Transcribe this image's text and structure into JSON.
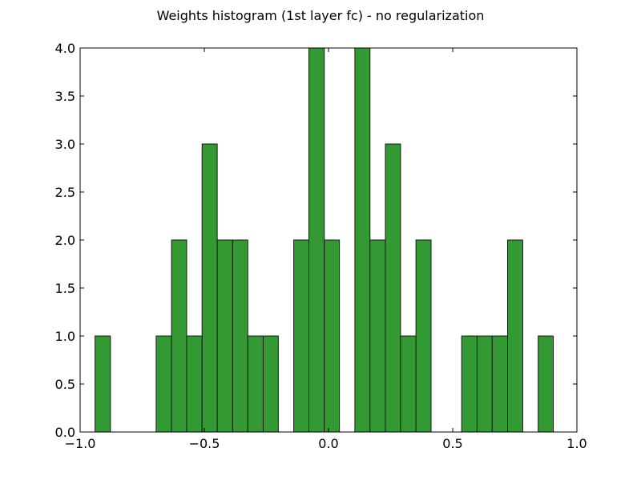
{
  "chart_data": {
    "type": "bar",
    "title": "Weights histogram (1st layer fc) - no regularization",
    "xlabel": "",
    "ylabel": "",
    "xlim": [
      -1.0,
      1.0
    ],
    "ylim": [
      0.0,
      4.0
    ],
    "x_ticks": [
      "−1.0",
      "−0.5",
      "0.0",
      "0.5",
      "1.0"
    ],
    "y_ticks": [
      "0.0",
      "0.5",
      "1.0",
      "1.5",
      "2.0",
      "2.5",
      "3.0",
      "3.5",
      "4.0"
    ],
    "grid": false,
    "bar_color": "#339933",
    "edge_color": "#1a1a1a",
    "bin_edges": [
      -0.94,
      -0.878,
      -0.817,
      -0.755,
      -0.694,
      -0.632,
      -0.571,
      -0.509,
      -0.448,
      -0.386,
      -0.325,
      -0.263,
      -0.202,
      -0.14,
      -0.079,
      -0.017,
      0.044,
      0.106,
      0.167,
      0.229,
      0.29,
      0.352,
      0.413,
      0.475,
      0.536,
      0.598,
      0.659,
      0.721,
      0.782,
      0.844,
      0.905
    ],
    "values": [
      1,
      0,
      0,
      0,
      1,
      2,
      1,
      3,
      2,
      2,
      1,
      1,
      0,
      2,
      4,
      2,
      0,
      4,
      2,
      3,
      1,
      2,
      0,
      0,
      1,
      1,
      1,
      2,
      0,
      1
    ]
  }
}
